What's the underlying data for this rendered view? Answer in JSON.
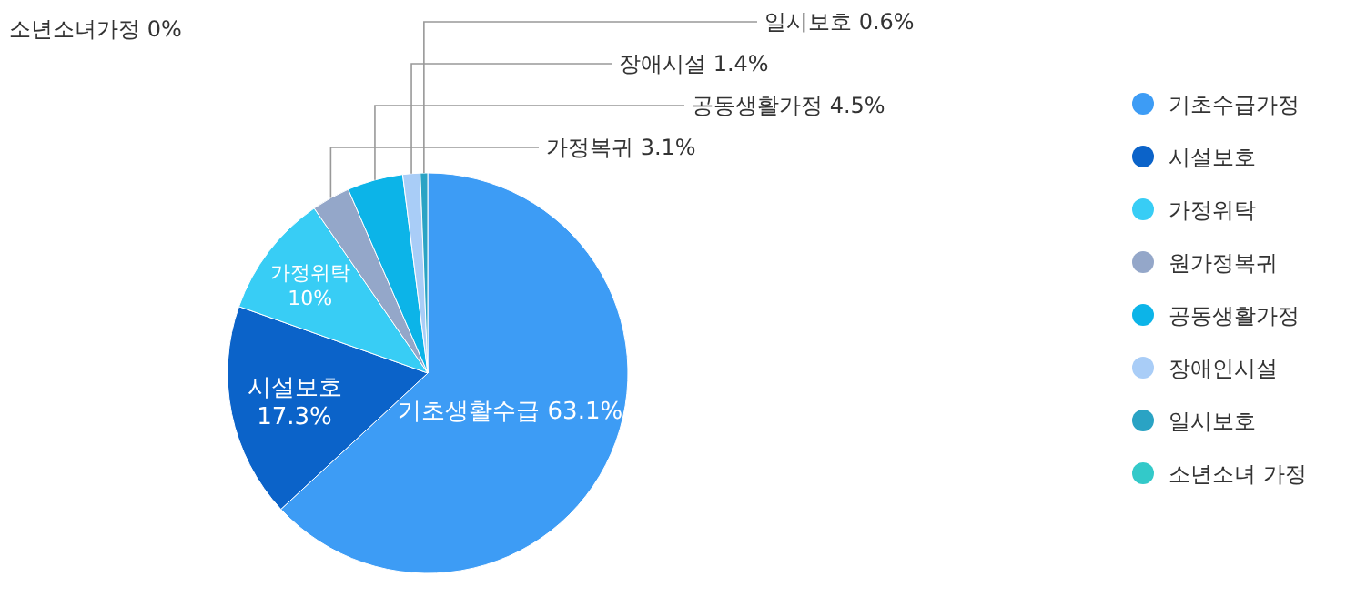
{
  "chart_data": {
    "type": "pie",
    "categories": [
      "기초수급가정",
      "시설보호",
      "가정위탁",
      "원가정복귀",
      "공동생활가정",
      "장애인시설",
      "일시보호",
      "소년소녀 가정"
    ],
    "values": [
      63.1,
      17.3,
      10,
      3.1,
      4.5,
      1.4,
      0.6,
      0
    ],
    "colors": [
      "#3d9cf5",
      "#0b63c9",
      "#38cdf5",
      "#94a7c9",
      "#0cb4e8",
      "#a9cdf7",
      "#2aa3c4",
      "#33c9c9"
    ],
    "value_labels": [
      "기초생활수급 63.1%",
      "시설보호 17.3%",
      "가정위탁 10%",
      "가정복귀 3.1%",
      "공동생활가정 4.5%",
      "장애시설 1.4%",
      "일시보호 0.6%",
      "소년소녀가정 0%"
    ],
    "legend": "right"
  }
}
